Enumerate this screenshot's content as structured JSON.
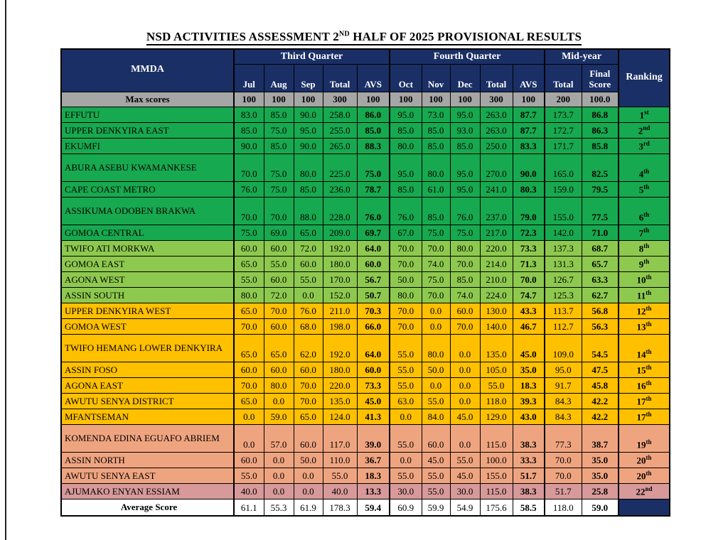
{
  "title": {
    "prefix": "NSD ACTIVITIES ASSESSMENT 2",
    "sup": "ND",
    "suffix": " HALF OF 2025 PROVISIONAL RESULTS"
  },
  "colors": {
    "navy": "#1A2F66",
    "gray": "#A6A6A6",
    "green": "#17A94F",
    "lightgreen": "#8EC94F",
    "gold": "#FFC000",
    "salmon": "#EFA480",
    "rose": "#D7999A"
  },
  "header": {
    "mmda": "MMDA",
    "third_quarter": "Third Quarter",
    "fourth_quarter": "Fourth Quarter",
    "mid_year": "Mid-year",
    "ranking": "Ranking"
  },
  "columns": [
    "Jul",
    "Aug",
    "Sep",
    "Total",
    "AVS",
    "Oct",
    "Nov",
    "Dec",
    "Total",
    "AVS",
    "Total",
    "Final Score"
  ],
  "max_scores": {
    "label": "Max scores",
    "values": [
      "100",
      "100",
      "100",
      "300",
      "100",
      "100",
      "100",
      "100",
      "300",
      "100",
      "200",
      "100.0"
    ]
  },
  "rows": [
    {
      "name": "EFFUTU",
      "group": "green",
      "tall": false,
      "values": [
        "83.0",
        "85.0",
        "90.0",
        "258.0",
        "86.0",
        "95.0",
        "73.0",
        "95.0",
        "263.0",
        "87.7",
        "173.7",
        "86.8"
      ],
      "rank": "1",
      "rank_suffix": "st"
    },
    {
      "name": "UPPER DENKYIRA EAST",
      "group": "green",
      "tall": false,
      "values": [
        "85.0",
        "75.0",
        "95.0",
        "255.0",
        "85.0",
        "85.0",
        "85.0",
        "93.0",
        "263.0",
        "87.7",
        "172.7",
        "86.3"
      ],
      "rank": "2",
      "rank_suffix": "nd"
    },
    {
      "name": "EKUMFI",
      "group": "green",
      "tall": false,
      "values": [
        "90.0",
        "85.0",
        "90.0",
        "265.0",
        "88.3",
        "80.0",
        "85.0",
        "85.0",
        "250.0",
        "83.3",
        "171.7",
        "85.8"
      ],
      "rank": "3",
      "rank_suffix": "rd"
    },
    {
      "name": "ABURA ASEBU KWAMANKESE",
      "group": "green",
      "tall": true,
      "values": [
        "70.0",
        "75.0",
        "80.0",
        "225.0",
        "75.0",
        "95.0",
        "80.0",
        "95.0",
        "270.0",
        "90.0",
        "165.0",
        "82.5"
      ],
      "rank": "4",
      "rank_suffix": "th"
    },
    {
      "name": "CAPE COAST METRO",
      "group": "green",
      "tall": false,
      "values": [
        "76.0",
        "75.0",
        "85.0",
        "236.0",
        "78.7",
        "85.0",
        "61.0",
        "95.0",
        "241.0",
        "80.3",
        "159.0",
        "79.5"
      ],
      "rank": "5",
      "rank_suffix": "th"
    },
    {
      "name": "ASSIKUMA ODOBEN BRAKWA",
      "group": "green",
      "tall": true,
      "values": [
        "70.0",
        "70.0",
        "88.0",
        "228.0",
        "76.0",
        "76.0",
        "85.0",
        "76.0",
        "237.0",
        "79.0",
        "155.0",
        "77.5"
      ],
      "rank": "6",
      "rank_suffix": "th"
    },
    {
      "name": "GOMOA CENTRAL",
      "group": "green",
      "tall": false,
      "values": [
        "75.0",
        "69.0",
        "65.0",
        "209.0",
        "69.7",
        "67.0",
        "75.0",
        "75.0",
        "217.0",
        "72.3",
        "142.0",
        "71.0"
      ],
      "rank": "7",
      "rank_suffix": "th"
    },
    {
      "name": "TWIFO ATI MORKWA",
      "group": "lightgreen",
      "tall": false,
      "values": [
        "60.0",
        "60.0",
        "72.0",
        "192.0",
        "64.0",
        "70.0",
        "70.0",
        "80.0",
        "220.0",
        "73.3",
        "137.3",
        "68.7"
      ],
      "rank": "8",
      "rank_suffix": "th"
    },
    {
      "name": "GOMOA EAST",
      "group": "lightgreen",
      "tall": false,
      "values": [
        "65.0",
        "55.0",
        "60.0",
        "180.0",
        "60.0",
        "70.0",
        "74.0",
        "70.0",
        "214.0",
        "71.3",
        "131.3",
        "65.7"
      ],
      "rank": "9",
      "rank_suffix": "th"
    },
    {
      "name": "AGONA WEST",
      "group": "lightgreen",
      "tall": false,
      "values": [
        "55.0",
        "60.0",
        "55.0",
        "170.0",
        "56.7",
        "50.0",
        "75.0",
        "85.0",
        "210.0",
        "70.0",
        "126.7",
        "63.3"
      ],
      "rank": "10",
      "rank_suffix": "th"
    },
    {
      "name": "ASSIN SOUTH",
      "group": "lightgreen",
      "tall": false,
      "values": [
        "80.0",
        "72.0",
        "0.0",
        "152.0",
        "50.7",
        "80.0",
        "70.0",
        "74.0",
        "224.0",
        "74.7",
        "125.3",
        "62.7"
      ],
      "rank": "11",
      "rank_suffix": "th"
    },
    {
      "name": "UPPER DENKYIRA WEST",
      "group": "gold",
      "tall": false,
      "values": [
        "65.0",
        "70.0",
        "76.0",
        "211.0",
        "70.3",
        "70.0",
        "0.0",
        "60.0",
        "130.0",
        "43.3",
        "113.7",
        "56.8"
      ],
      "rank": "12",
      "rank_suffix": "th"
    },
    {
      "name": "GOMOA WEST",
      "group": "gold",
      "tall": false,
      "values": [
        "70.0",
        "60.0",
        "68.0",
        "198.0",
        "66.0",
        "70.0",
        "0.0",
        "70.0",
        "140.0",
        "46.7",
        "112.7",
        "56.3"
      ],
      "rank": "13",
      "rank_suffix": "th"
    },
    {
      "name": "TWIFO HEMANG LOWER DENKYIRA",
      "group": "gold",
      "tall": true,
      "values": [
        "65.0",
        "65.0",
        "62.0",
        "192.0",
        "64.0",
        "55.0",
        "80.0",
        "0.0",
        "135.0",
        "45.0",
        "109.0",
        "54.5"
      ],
      "rank": "14",
      "rank_suffix": "th"
    },
    {
      "name": "ASSIN FOSO",
      "group": "gold",
      "tall": false,
      "values": [
        "60.0",
        "60.0",
        "60.0",
        "180.0",
        "60.0",
        "55.0",
        "50.0",
        "0.0",
        "105.0",
        "35.0",
        "95.0",
        "47.5"
      ],
      "rank": "15",
      "rank_suffix": "th"
    },
    {
      "name": "AGONA EAST",
      "group": "gold",
      "tall": false,
      "values": [
        "70.0",
        "80.0",
        "70.0",
        "220.0",
        "73.3",
        "55.0",
        "0.0",
        "0.0",
        "55.0",
        "18.3",
        "91.7",
        "45.8"
      ],
      "rank": "16",
      "rank_suffix": "th"
    },
    {
      "name": "AWUTU SENYA DISTRICT",
      "group": "gold",
      "tall": false,
      "values": [
        "65.0",
        "0.0",
        "70.0",
        "135.0",
        "45.0",
        "63.0",
        "55.0",
        "0.0",
        "118.0",
        "39.3",
        "84.3",
        "42.2"
      ],
      "rank": "17",
      "rank_suffix": "th"
    },
    {
      "name": "MFANTSEMAN",
      "group": "gold",
      "tall": false,
      "values": [
        "0.0",
        "59.0",
        "65.0",
        "124.0",
        "41.3",
        "0.0",
        "84.0",
        "45.0",
        "129.0",
        "43.0",
        "84.3",
        "42.2"
      ],
      "rank": "17",
      "rank_suffix": "th"
    },
    {
      "name": "KOMENDA EDINA EGUAFO ABRIEM",
      "group": "salmon",
      "tall": true,
      "values": [
        "0.0",
        "57.0",
        "60.0",
        "117.0",
        "39.0",
        "55.0",
        "60.0",
        "0.0",
        "115.0",
        "38.3",
        "77.3",
        "38.7"
      ],
      "rank": "19",
      "rank_suffix": "th"
    },
    {
      "name": "ASSIN NORTH",
      "group": "salmon",
      "tall": false,
      "values": [
        "60.0",
        "0.0",
        "50.0",
        "110.0",
        "36.7",
        "0.0",
        "45.0",
        "55.0",
        "100.0",
        "33.3",
        "70.0",
        "35.0"
      ],
      "rank": "20",
      "rank_suffix": "th"
    },
    {
      "name": "AWUTU SENYA EAST",
      "group": "salmon",
      "tall": false,
      "values": [
        "55.0",
        "0.0",
        "0.0",
        "55.0",
        "18.3",
        "55.0",
        "55.0",
        "45.0",
        "155.0",
        "51.7",
        "70.0",
        "35.0"
      ],
      "rank": "20",
      "rank_suffix": "th"
    },
    {
      "name": "AJUMAKO ENYAN ESSIAM",
      "group": "rose",
      "tall": false,
      "values": [
        "40.0",
        "0.0",
        "0.0",
        "40.0",
        "13.3",
        "30.0",
        "55.0",
        "30.0",
        "115.0",
        "38.3",
        "51.7",
        "25.8"
      ],
      "rank": "22",
      "rank_suffix": "nd"
    }
  ],
  "average_row": {
    "label": "Average Score",
    "values": [
      "61.1",
      "55.3",
      "61.9",
      "178.3",
      "59.4",
      "60.9",
      "59.9",
      "54.9",
      "175.6",
      "58.5",
      "118.0",
      "59.0"
    ]
  }
}
